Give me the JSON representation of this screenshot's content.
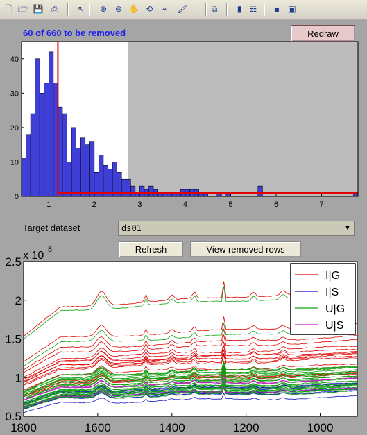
{
  "toolbar": {
    "tools": [
      {
        "icon": "new-file-icon",
        "glyph": "🗋"
      },
      {
        "icon": "open-folder-icon",
        "glyph": "🗁"
      },
      {
        "icon": "save-icon",
        "glyph": "💾"
      },
      {
        "icon": "print-icon",
        "glyph": "⎙"
      },
      {
        "icon": "pointer-icon",
        "glyph": "↖"
      },
      {
        "icon": "zoom-in-icon",
        "glyph": "⊕"
      },
      {
        "icon": "zoom-out-icon",
        "glyph": "⊖"
      },
      {
        "icon": "pan-hand-icon",
        "glyph": "✋"
      },
      {
        "icon": "rotate-3d-icon",
        "glyph": "⟲"
      },
      {
        "icon": "data-cursor-icon",
        "glyph": "⌖"
      },
      {
        "icon": "brush-icon",
        "glyph": "🖌"
      },
      {
        "icon": "link-plot-icon",
        "glyph": "⧉"
      },
      {
        "icon": "colorbar-icon",
        "glyph": "▮"
      },
      {
        "icon": "legend-icon",
        "glyph": "☷"
      },
      {
        "icon": "hide-plot-tools-icon",
        "glyph": "▪"
      },
      {
        "icon": "show-plot-tools-icon",
        "glyph": "▣"
      }
    ]
  },
  "status": {
    "removed_text": "60 of 660 to be removed"
  },
  "buttons": {
    "redraw": "Redraw",
    "refresh": "Refresh",
    "view_removed": "View removed rows"
  },
  "target": {
    "label": "Target dataset",
    "selected": "ds01"
  },
  "colors": {
    "bar_fill": "#3f3fd8",
    "threshold": "#e00000",
    "status_text": "#1c1cf0"
  },
  "chart_data": [
    {
      "type": "bar",
      "title": "",
      "xlabel": "",
      "ylabel": "",
      "xlim": [
        0.4,
        7.8
      ],
      "ylim": [
        0,
        45
      ],
      "xticks": [
        1,
        2,
        3,
        4,
        5,
        6,
        7
      ],
      "yticks": [
        0,
        10,
        20,
        30,
        40
      ],
      "corner_label": "6",
      "bin_width": 0.1,
      "bin_starts": [
        0.4,
        0.5,
        0.6,
        0.7,
        0.8,
        0.9,
        1.0,
        1.1,
        1.2,
        1.3,
        1.4,
        1.5,
        1.6,
        1.7,
        1.8,
        1.9,
        2.0,
        2.1,
        2.2,
        2.3,
        2.4,
        2.5,
        2.6,
        2.7,
        2.8,
        2.9,
        3.0,
        3.1,
        3.2,
        3.3,
        3.4,
        3.5,
        3.6,
        3.7,
        3.8,
        3.9,
        4.0,
        4.1,
        4.2,
        4.3,
        4.4,
        4.7,
        4.9,
        5.6,
        7.7
      ],
      "values": [
        11,
        18,
        24,
        40,
        30,
        33,
        42,
        33,
        26,
        24,
        10,
        20,
        14,
        17,
        15,
        16,
        7,
        12,
        9,
        8,
        10,
        7,
        5,
        5,
        3,
        1,
        3,
        2,
        3,
        2,
        1,
        1,
        1,
        1,
        1,
        2,
        2,
        2,
        2,
        1,
        1,
        1,
        1,
        3,
        1
      ],
      "threshold_x": 1.2,
      "threshold_y": 1,
      "kept_region_end_x": 2.75
    },
    {
      "type": "line",
      "title": "",
      "xlabel": "",
      "ylabel": "",
      "xlim": [
        1800,
        900
      ],
      "ylim": [
        0.5,
        2.5
      ],
      "y_multiplier": "x 10^5",
      "xticks": [
        1800,
        1600,
        1400,
        1200,
        1000
      ],
      "yticks": [
        0.5,
        1,
        1.5,
        2,
        2.5
      ],
      "legend_position": "top-right",
      "series": [
        {
          "name": "I|G",
          "color": "#e00000"
        },
        {
          "name": "I|S",
          "color": "#1010c0"
        },
        {
          "name": "U|G",
          "color": "#10a010"
        },
        {
          "name": "U|S",
          "color": "#d010d0"
        }
      ]
    }
  ]
}
